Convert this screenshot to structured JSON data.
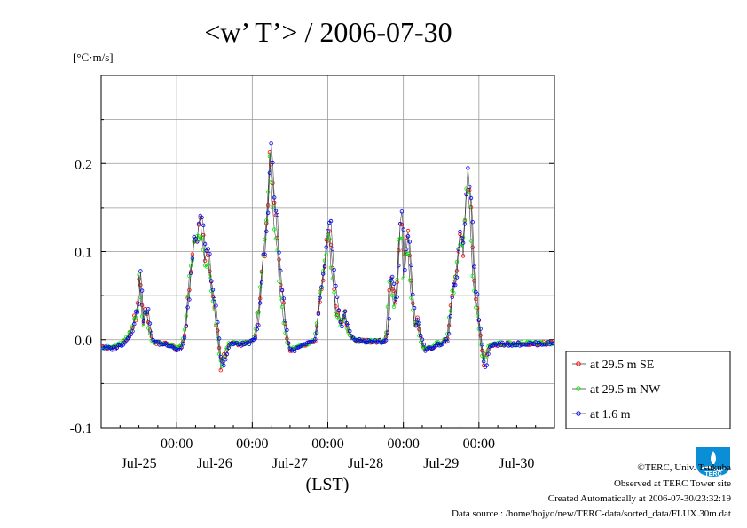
{
  "chart_data": {
    "type": "line",
    "title": "<w’ T’> / 2006-07-30",
    "ylabel": "[°C·m/s]",
    "xlabel": "(LST)",
    "ylim": [
      -0.1,
      0.3
    ],
    "yticks": [
      -0.1,
      0.0,
      0.1,
      0.2
    ],
    "ytick_labels": [
      "-0.1",
      "0.0",
      "0.1",
      "0.2"
    ],
    "xlim_hours": [
      0,
      144
    ],
    "xticks": [
      {
        "hour": 24,
        "time": "00:00",
        "day": "Jul-26"
      },
      {
        "hour": 48,
        "time": "00:00",
        "day": "Jul-27"
      },
      {
        "hour": 72,
        "time": "00:00",
        "day": "Jul-28"
      },
      {
        "hour": 96,
        "time": "00:00",
        "day": "Jul-29"
      },
      {
        "hour": 120,
        "time": "00:00",
        "day": "Jul-30"
      }
    ],
    "day_labels": [
      {
        "hour": 12,
        "label": "Jul-25"
      },
      {
        "hour": 36,
        "label": "Jul-26"
      },
      {
        "hour": 60,
        "label": "Jul-27"
      },
      {
        "hour": 84,
        "label": "Jul-28"
      },
      {
        "hour": 108,
        "label": "Jul-29"
      },
      {
        "hour": 132,
        "label": "Jul-30"
      }
    ],
    "grid": true,
    "legend_position": "bottom-right, outside plot",
    "series": [
      {
        "name": "at 29.5 m SE",
        "color": "#ff0000",
        "scale": 1.0,
        "offset_h": 0.0
      },
      {
        "name": "at 29.5 m NW",
        "color": "#00ee00",
        "scale": 0.93,
        "offset_h": 0.25
      },
      {
        "name": "at 1.6 m",
        "color": "#0000ff",
        "scale": 1.05,
        "offset_h": -0.25
      }
    ],
    "base_profile": [
      [
        0,
        -0.008
      ],
      [
        3,
        -0.01
      ],
      [
        6,
        -0.006
      ],
      [
        8,
        0.0
      ],
      [
        9,
        0.006
      ],
      [
        10,
        0.012
      ],
      [
        11,
        0.03
      ],
      [
        11.8,
        0.045
      ],
      [
        12.3,
        0.085
      ],
      [
        12.8,
        0.04
      ],
      [
        13.5,
        0.02
      ],
      [
        14.5,
        0.035
      ],
      [
        15.5,
        0.01
      ],
      [
        16.5,
        -0.002
      ],
      [
        18,
        -0.004
      ],
      [
        21,
        -0.005
      ],
      [
        23,
        -0.008
      ],
      [
        24,
        -0.012
      ],
      [
        25.5,
        -0.008
      ],
      [
        26.5,
        0.005
      ],
      [
        27.5,
        0.04
      ],
      [
        28.5,
        0.08
      ],
      [
        29.5,
        0.11
      ],
      [
        30.5,
        0.115
      ],
      [
        31.5,
        0.13
      ],
      [
        32.5,
        0.115
      ],
      [
        33.2,
        0.09
      ],
      [
        34,
        0.095
      ],
      [
        34.8,
        0.07
      ],
      [
        35.5,
        0.05
      ],
      [
        36.5,
        0.025
      ],
      [
        37.3,
        0.0
      ],
      [
        38,
        -0.03
      ],
      [
        39,
        -0.025
      ],
      [
        40,
        -0.01
      ],
      [
        41,
        -0.004
      ],
      [
        44,
        -0.005
      ],
      [
        46,
        -0.004
      ],
      [
        48,
        -0.002
      ],
      [
        49,
        0.005
      ],
      [
        50,
        0.03
      ],
      [
        51,
        0.08
      ],
      [
        52,
        0.1
      ],
      [
        53,
        0.15
      ],
      [
        53.6,
        0.22
      ],
      [
        54.2,
        0.2
      ],
      [
        54.8,
        0.15
      ],
      [
        55.5,
        0.14
      ],
      [
        56.3,
        0.1
      ],
      [
        57,
        0.06
      ],
      [
        57.8,
        0.04
      ],
      [
        58.5,
        0.02
      ],
      [
        59,
        0.0
      ],
      [
        60,
        -0.012
      ],
      [
        62,
        -0.01
      ],
      [
        64,
        -0.006
      ],
      [
        66,
        -0.004
      ],
      [
        68,
        0.0
      ],
      [
        69,
        0.03
      ],
      [
        70,
        0.06
      ],
      [
        71,
        0.09
      ],
      [
        72,
        0.12
      ],
      [
        72.6,
        0.13
      ],
      [
        73.3,
        0.09
      ],
      [
        74,
        0.06
      ],
      [
        75,
        0.03
      ],
      [
        76,
        0.02
      ],
      [
        77,
        0.03
      ],
      [
        77.8,
        0.02
      ],
      [
        79,
        0.005
      ],
      [
        81,
        -0.001
      ],
      [
        84,
        -0.002
      ],
      [
        88,
        -0.002
      ],
      [
        90,
        -0.002
      ],
      [
        91,
        0.01
      ],
      [
        91.6,
        0.06
      ],
      [
        92.2,
        0.07
      ],
      [
        93,
        0.05
      ],
      [
        93.6,
        0.04
      ],
      [
        94.3,
        0.08
      ],
      [
        95,
        0.14
      ],
      [
        95.7,
        0.12
      ],
      [
        96.3,
        0.08
      ],
      [
        97,
        0.11
      ],
      [
        97.6,
        0.12
      ],
      [
        98.3,
        0.07
      ],
      [
        99,
        0.04
      ],
      [
        99.5,
        0.02
      ],
      [
        100,
        0.015
      ],
      [
        100.5,
        0.025
      ],
      [
        101,
        0.01
      ],
      [
        102,
        -0.005
      ],
      [
        103,
        -0.012
      ],
      [
        104,
        -0.01
      ],
      [
        106,
        -0.006
      ],
      [
        108,
        -0.004
      ],
      [
        110,
        0.0
      ],
      [
        111,
        0.03
      ],
      [
        112,
        0.06
      ],
      [
        113,
        0.08
      ],
      [
        114,
        0.12
      ],
      [
        115,
        0.1
      ],
      [
        115.6,
        0.14
      ],
      [
        116.2,
        0.18
      ],
      [
        116.8,
        0.17
      ],
      [
        117.5,
        0.15
      ],
      [
        118,
        0.1
      ],
      [
        118.7,
        0.06
      ],
      [
        119.3,
        0.04
      ],
      [
        120,
        0.02
      ],
      [
        120.6,
        0.0
      ],
      [
        121.2,
        -0.02
      ],
      [
        122,
        -0.025
      ],
      [
        123,
        -0.01
      ],
      [
        124,
        -0.005
      ],
      [
        144,
        -0.004
      ]
    ]
  },
  "footer": {
    "copyright": "©TERC, Univ. Tsukuba",
    "observed": "Observed at TERC Tower site",
    "created": "Created Automatically at 2006-07-30/23:32:19",
    "source": "Data source : /home/hojyo/new/TERC-data/sorted_data/FLUX.30m.dat"
  },
  "logo_text": "TERC"
}
